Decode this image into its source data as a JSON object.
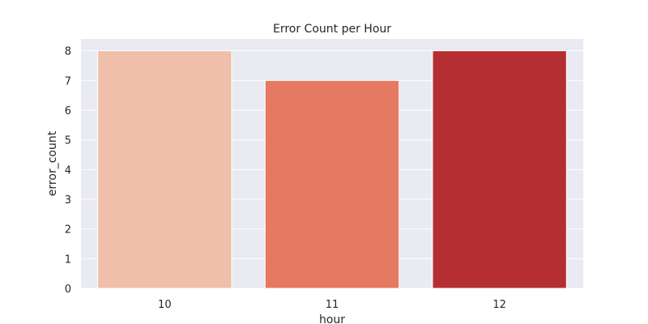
{
  "chart_data": {
    "type": "bar",
    "title": "Error Count per Hour",
    "xlabel": "hour",
    "ylabel": "error_count",
    "categories": [
      "10",
      "11",
      "12"
    ],
    "values": [
      8,
      7,
      8
    ],
    "ylim": [
      0,
      8.4
    ],
    "yticks": [
      0,
      1,
      2,
      3,
      4,
      5,
      6,
      7,
      8
    ],
    "grid": true,
    "legend": "none",
    "colors": {
      "background": "#eaeaf2",
      "grid": "#ffffff",
      "bars": [
        "#f0bfa9",
        "#e67961",
        "#b52f32"
      ],
      "bar_edge": "#ffffff"
    }
  }
}
